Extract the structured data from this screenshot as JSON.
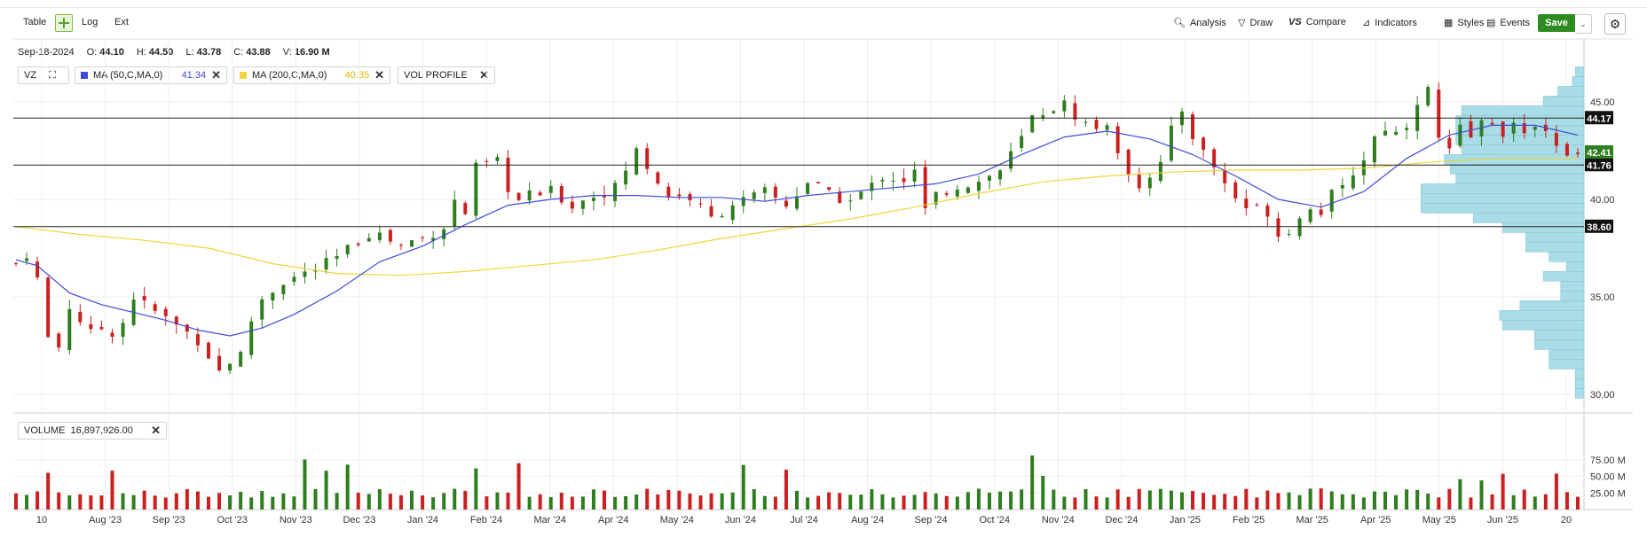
{
  "toolbar": {
    "table_label": "Table",
    "log_label": "Log",
    "ext_label": "Ext",
    "analysis_label": "Analysis",
    "draw_label": "Draw",
    "compare_label": "Compare",
    "indicators_label": "Indicators",
    "styles_label": "Styles",
    "events_label": "Events",
    "save_label": "Save"
  },
  "ohlc": {
    "date": "Sep-18-2024",
    "o_label": "O:",
    "o": "44.10",
    "h_label": "H:",
    "h": "44.50",
    "l_label": "L:",
    "l": "43.78",
    "c_label": "C:",
    "c": "43.88",
    "v_label": "V:",
    "v": "16.90 M"
  },
  "studies": {
    "symbol": "VZ",
    "ma50_label": "MA (50,C,MA,0)",
    "ma50_value": "41.34",
    "ma200_label": "MA (200,C,MA,0)",
    "ma200_value": "40.35",
    "volprofile_label": "VOL PROFILE",
    "close_glyph": "✕"
  },
  "volume_panel": {
    "label": "VOLUME",
    "value": "16,897,926.00"
  },
  "colors": {
    "up": "#2e7d1e",
    "down": "#cc1f1f",
    "ma50": "#3b4cd8",
    "ma200": "#f2d43a",
    "vol_profile": "#a8dce6",
    "save_green": "#2e8b22"
  },
  "chart_data": {
    "type": "candlestick",
    "ticker": "VZ",
    "price_axis": {
      "ticks": [
        "45.00",
        "40.00",
        "35.00",
        "30.00"
      ],
      "tick_values": [
        45,
        40,
        35,
        30
      ]
    },
    "volume_axis": {
      "ticks": [
        "75.00 M",
        "50.00 M",
        "25.00 M"
      ],
      "tick_values": [
        75,
        50,
        25
      ]
    },
    "x_tick_labels": [
      "10",
      "Aug '23",
      "Sep '23",
      "Oct '23",
      "Nov '23",
      "Dec '23",
      "Jan '24",
      "Feb '24",
      "Mar '24",
      "Apr '24",
      "May '24",
      "Jun '24",
      "Jul '24",
      "Aug '24",
      "Sep '24",
      "Oct '24",
      "Nov '24",
      "Dec '24",
      "Jan '25",
      "Feb '25",
      "Mar '25",
      "Apr '25",
      "May '25",
      "Jun '25",
      "20"
    ],
    "horizontal_levels": [
      {
        "value": 44.17,
        "label": "44.17"
      },
      {
        "value": 41.76,
        "label": "41.76"
      },
      {
        "value": 38.6,
        "label": "38.60"
      }
    ],
    "last_price_tags": [
      {
        "value": 42.41,
        "label": "42.41",
        "color": "#2e7d1e"
      }
    ],
    "close_anchors": [
      [
        0,
        36.7
      ],
      [
        1.5,
        37.5
      ],
      [
        2,
        35.9
      ],
      [
        3.5,
        31.4
      ],
      [
        5,
        34.5
      ],
      [
        7,
        33.1
      ],
      [
        8,
        33.4
      ],
      [
        9,
        33.2
      ],
      [
        10,
        33.7
      ],
      [
        11,
        35.0
      ],
      [
        12,
        34.6
      ],
      [
        14,
        33.9
      ],
      [
        17,
        32.8
      ],
      [
        19,
        31.2
      ],
      [
        20,
        31.7
      ],
      [
        21,
        32.0
      ],
      [
        22,
        33.8
      ],
      [
        23,
        34.9
      ],
      [
        25,
        35.8
      ],
      [
        28,
        36.4
      ],
      [
        30,
        37.0
      ],
      [
        33,
        38.3
      ],
      [
        34,
        38.2
      ],
      [
        36,
        37.6
      ],
      [
        37,
        37.9
      ],
      [
        38,
        38.0
      ],
      [
        40,
        38.6
      ],
      [
        41,
        39.9
      ],
      [
        42,
        39.3
      ],
      [
        43,
        41.6
      ],
      [
        45,
        41.9
      ],
      [
        46,
        40.6
      ],
      [
        47,
        39.9
      ],
      [
        48,
        40.2
      ],
      [
        50,
        40.4
      ],
      [
        52,
        39.7
      ],
      [
        54,
        40.2
      ],
      [
        56,
        40.6
      ],
      [
        58,
        42.5
      ],
      [
        60,
        40.9
      ],
      [
        61,
        40.2
      ],
      [
        63,
        40.1
      ],
      [
        65,
        39.0
      ],
      [
        66,
        39.4
      ],
      [
        67,
        39.8
      ],
      [
        69,
        40.1
      ],
      [
        70,
        40.4
      ],
      [
        72,
        39.7
      ],
      [
        74,
        40.9
      ],
      [
        75,
        40.6
      ],
      [
        76,
        40.2
      ],
      [
        78,
        39.9
      ],
      [
        80,
        40.7
      ],
      [
        81,
        41.2
      ],
      [
        83,
        41.0
      ],
      [
        84,
        41.4
      ],
      [
        85,
        39.4
      ],
      [
        86,
        40.2
      ],
      [
        88,
        40.7
      ],
      [
        90,
        40.9
      ],
      [
        92,
        41.5
      ],
      [
        94,
        43.1
      ],
      [
        95,
        44.2
      ],
      [
        97,
        44.7
      ],
      [
        98,
        44.9
      ],
      [
        99,
        44.3
      ],
      [
        100,
        43.9
      ],
      [
        101,
        43.6
      ],
      [
        102,
        44.0
      ],
      [
        103,
        42.1
      ],
      [
        104,
        41.5
      ],
      [
        105,
        40.8
      ],
      [
        107,
        41.8
      ],
      [
        108,
        43.5
      ],
      [
        109,
        44.6
      ],
      [
        110,
        43.3
      ],
      [
        111,
        42.4
      ],
      [
        112,
        41.7
      ],
      [
        113,
        40.8
      ],
      [
        114,
        40.1
      ],
      [
        115,
        39.6
      ],
      [
        117,
        39.4
      ],
      [
        118,
        38.2
      ],
      [
        119,
        38.5
      ],
      [
        120,
        39.0
      ],
      [
        121,
        39.7
      ],
      [
        122,
        39.4
      ],
      [
        123,
        40.2
      ],
      [
        124,
        40.5
      ],
      [
        125,
        41.4
      ],
      [
        126,
        42.1
      ],
      [
        127,
        43.2
      ],
      [
        127.6,
        45.9
      ],
      [
        128,
        43.7
      ],
      [
        129,
        43.4
      ],
      [
        130,
        43.9
      ],
      [
        131,
        45.1
      ],
      [
        132,
        45.6
      ],
      [
        133,
        43.1
      ],
      [
        134,
        42.4
      ],
      [
        135,
        43.6
      ],
      [
        136,
        43.2
      ],
      [
        137,
        43.9
      ],
      [
        138,
        44.0
      ],
      [
        139,
        43.5
      ],
      [
        140,
        43.8
      ],
      [
        141,
        43.1
      ],
      [
        142,
        44.0
      ],
      [
        143,
        43.7
      ],
      [
        144,
        42.6
      ],
      [
        145,
        42.1
      ],
      [
        146,
        42.3
      ]
    ],
    "ma50": [
      [
        0,
        36.9
      ],
      [
        2,
        36.6
      ],
      [
        5,
        35.2
      ],
      [
        8,
        34.6
      ],
      [
        11,
        34.2
      ],
      [
        14,
        33.8
      ],
      [
        17,
        33.3
      ],
      [
        20,
        33.0
      ],
      [
        23,
        33.4
      ],
      [
        26,
        34.1
      ],
      [
        30,
        35.3
      ],
      [
        34,
        36.8
      ],
      [
        38,
        37.6
      ],
      [
        42,
        38.7
      ],
      [
        46,
        39.7
      ],
      [
        50,
        40.0
      ],
      [
        54,
        40.2
      ],
      [
        58,
        40.2
      ],
      [
        62,
        40.1
      ],
      [
        66,
        40.1
      ],
      [
        70,
        39.9
      ],
      [
        74,
        40.2
      ],
      [
        78,
        40.4
      ],
      [
        82,
        40.6
      ],
      [
        86,
        40.8
      ],
      [
        90,
        41.3
      ],
      [
        94,
        42.3
      ],
      [
        98,
        43.2
      ],
      [
        102,
        43.5
      ],
      [
        106,
        43.1
      ],
      [
        110,
        42.3
      ],
      [
        114,
        41.2
      ],
      [
        118,
        40.0
      ],
      [
        122,
        39.6
      ],
      [
        126,
        40.4
      ],
      [
        130,
        42.1
      ],
      [
        134,
        43.3
      ],
      [
        138,
        43.8
      ],
      [
        142,
        43.8
      ],
      [
        146,
        43.3
      ]
    ],
    "ma200": [
      [
        0,
        38.6
      ],
      [
        6,
        38.2
      ],
      [
        12,
        37.9
      ],
      [
        18,
        37.5
      ],
      [
        24,
        36.7
      ],
      [
        30,
        36.2
      ],
      [
        36,
        36.1
      ],
      [
        42,
        36.3
      ],
      [
        48,
        36.6
      ],
      [
        54,
        36.9
      ],
      [
        60,
        37.4
      ],
      [
        66,
        38.0
      ],
      [
        72,
        38.5
      ],
      [
        78,
        39.0
      ],
      [
        84,
        39.6
      ],
      [
        90,
        40.3
      ],
      [
        96,
        40.9
      ],
      [
        102,
        41.2
      ],
      [
        108,
        41.4
      ],
      [
        114,
        41.5
      ],
      [
        120,
        41.5
      ],
      [
        126,
        41.6
      ],
      [
        132,
        41.9
      ],
      [
        138,
        42.1
      ],
      [
        146,
        42.1
      ]
    ],
    "volume_profile": [
      {
        "price": 46.55,
        "value": 0.03
      },
      {
        "price": 46.05,
        "value": 0.04
      },
      {
        "price": 45.55,
        "value": 0.09
      },
      {
        "price": 45.05,
        "value": 0.14
      },
      {
        "price": 44.55,
        "value": 0.42
      },
      {
        "price": 44.05,
        "value": 0.44
      },
      {
        "price": 43.55,
        "value": 0.44
      },
      {
        "price": 43.05,
        "value": 0.44
      },
      {
        "price": 42.55,
        "value": 0.42
      },
      {
        "price": 42.05,
        "value": 0.48
      },
      {
        "price": 41.55,
        "value": 0.46
      },
      {
        "price": 41.05,
        "value": 0.44
      },
      {
        "price": 40.55,
        "value": 0.56
      },
      {
        "price": 40.05,
        "value": 0.56
      },
      {
        "price": 39.55,
        "value": 0.56
      },
      {
        "price": 39.05,
        "value": 0.38
      },
      {
        "price": 38.55,
        "value": 0.28
      },
      {
        "price": 38.05,
        "value": 0.2
      },
      {
        "price": 37.55,
        "value": 0.2
      },
      {
        "price": 37.05,
        "value": 0.12
      },
      {
        "price": 36.55,
        "value": 0.06
      },
      {
        "price": 36.05,
        "value": 0.14
      },
      {
        "price": 35.55,
        "value": 0.08
      },
      {
        "price": 35.05,
        "value": 0.08
      },
      {
        "price": 34.55,
        "value": 0.22
      },
      {
        "price": 34.05,
        "value": 0.29
      },
      {
        "price": 33.55,
        "value": 0.28
      },
      {
        "price": 33.05,
        "value": 0.17
      },
      {
        "price": 32.55,
        "value": 0.17
      },
      {
        "price": 32.05,
        "value": 0.12
      },
      {
        "price": 31.55,
        "value": 0.12
      },
      {
        "price": 31.05,
        "value": 0.03
      },
      {
        "price": 30.55,
        "value": 0.03
      },
      {
        "price": 30.05,
        "value": 0.03
      }
    ],
    "volume_series_summary": "one green/red bar per trading day (~18-30 M typical, spikes up to ~90 M)"
  }
}
